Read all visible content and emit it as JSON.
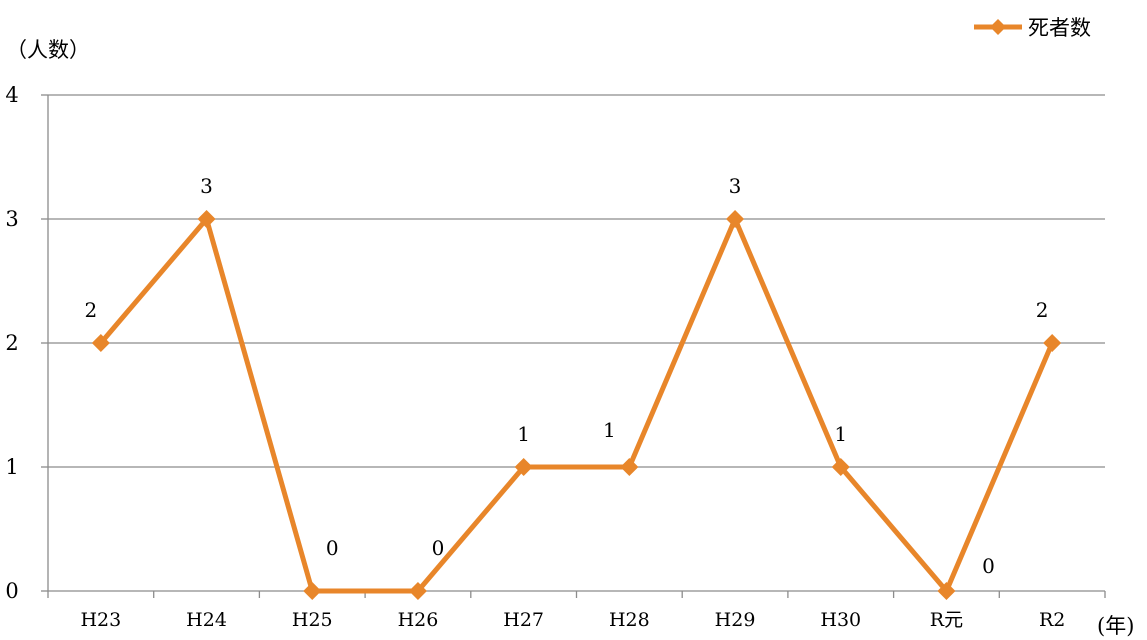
{
  "chart_data": {
    "type": "line",
    "categories": [
      "H23",
      "H24",
      "H25",
      "H26",
      "H27",
      "H28",
      "H29",
      "H30",
      "R元",
      "R2"
    ],
    "series": [
      {
        "name": "死者数",
        "values": [
          2,
          3,
          0,
          0,
          1,
          1,
          3,
          1,
          0,
          2
        ],
        "color": "#E8862A",
        "marker": "diamond"
      }
    ],
    "data_labels": [
      "2",
      "3",
      "0",
      "0",
      "1",
      "1",
      "3",
      "1",
      "0",
      "2"
    ],
    "ylabel": "（人数）",
    "xlabel": "(年)",
    "ylim": [
      0,
      4
    ],
    "yticks": [
      0,
      1,
      2,
      3,
      4
    ],
    "grid": true,
    "legend_position": "top-right"
  }
}
